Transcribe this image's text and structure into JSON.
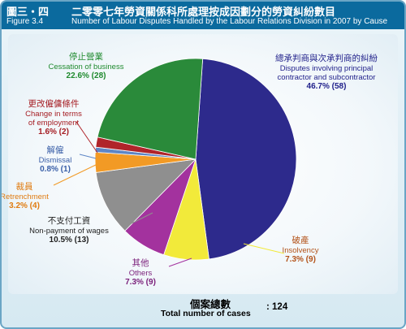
{
  "figure": {
    "label_zh": "圖三・四",
    "label_en": "Figure 3.4",
    "title_zh": "二零零七年勞資關係科所處理按成因劃分的勞資糾紛數目",
    "title_en": "Number of Labour Disputes Handled by the Labour Relations Division in 2007 by Cause"
  },
  "total": {
    "label_zh": "個案總數",
    "label_en": "Total number of cases",
    "value": ": 124"
  },
  "chart_data": {
    "type": "pie",
    "title": "Number of Labour Disputes Handled by the Labour Relations Division in 2007 by Cause",
    "total": 124,
    "slices": [
      {
        "zh": "總承判商與次承判商的糾紛",
        "en_lines": [
          "Disputes involving principal",
          "contractor and subcontractor"
        ],
        "value": 58,
        "percent": 46.7,
        "pct_text": "46.7% (58)",
        "color": "#2d2a8c",
        "label_color": "#1f1f8a"
      },
      {
        "zh": "破產",
        "en_lines": [
          "Insolvency"
        ],
        "value": 9,
        "percent": 7.3,
        "pct_text": "7.3% (9)",
        "color": "#f2ea3a",
        "label_color": "#b3531a"
      },
      {
        "zh": "其他",
        "en_lines": [
          "Others"
        ],
        "value": 9,
        "percent": 7.3,
        "pct_text": "7.3% (9)",
        "color": "#a3329e",
        "label_color": "#7a1f7a"
      },
      {
        "zh": "不支付工資",
        "en_lines": [
          "Non-payment of wages"
        ],
        "value": 13,
        "percent": 10.5,
        "pct_text": "10.5% (13)",
        "color": "#8f8f8f",
        "label_color": "#222222"
      },
      {
        "zh": "裁員",
        "en_lines": [
          "Retrenchment"
        ],
        "value": 4,
        "percent": 3.2,
        "pct_text": "3.2% (4)",
        "color": "#f29a25",
        "label_color": "#e07b10"
      },
      {
        "zh": "解僱",
        "en_lines": [
          "Dismissal"
        ],
        "value": 1,
        "percent": 0.8,
        "pct_text": "0.8% (1)",
        "color": "#5e86c6",
        "label_color": "#3a5fa8"
      },
      {
        "zh": "更改僱傭條件",
        "en_lines": [
          "Change in terms",
          "of employment"
        ],
        "value": 2,
        "percent": 1.6,
        "pct_text": "1.6% (2)",
        "color": "#b0242a",
        "label_color": "#a51c22"
      },
      {
        "zh": "停止營業",
        "en_lines": [
          "Cessation of business"
        ],
        "value": 28,
        "percent": 22.6,
        "pct_text": "22.6% (28)",
        "color": "#2a8a3a",
        "label_color": "#1f8a2e"
      }
    ]
  }
}
